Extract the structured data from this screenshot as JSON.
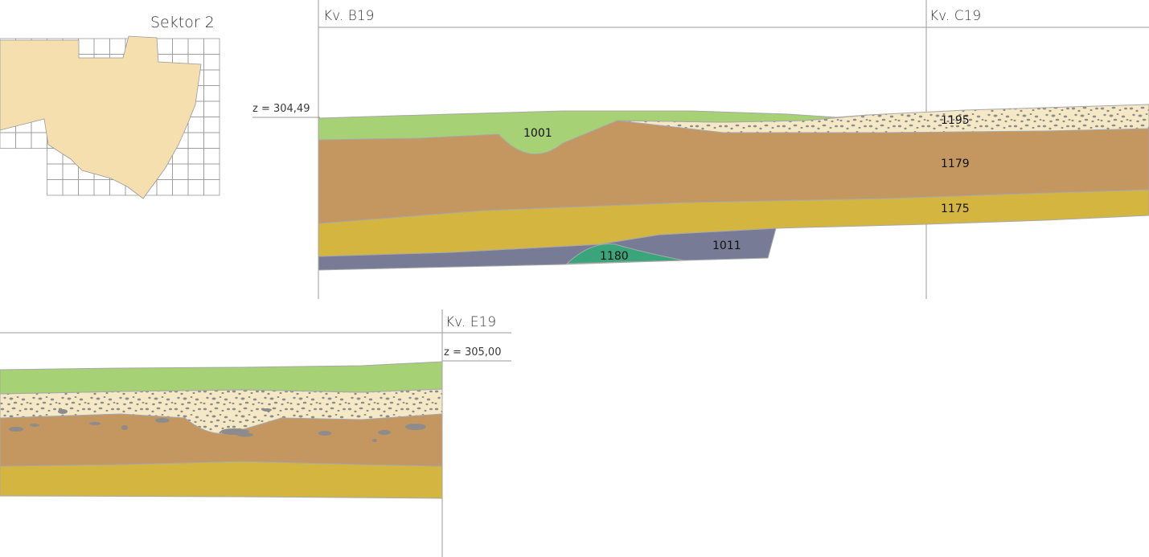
{
  "inset_map": {
    "title": "Sektor 2"
  },
  "upper_profile": {
    "grid_labels": [
      "Kv. B19",
      "Kv. C19"
    ],
    "elevation": "z = 304,49",
    "layers": [
      {
        "id": "1001",
        "color": "#a6d175"
      },
      {
        "id": "1195",
        "color": "#f4e8c5"
      },
      {
        "id": "1179",
        "color": "#c49660"
      },
      {
        "id": "1175",
        "color": "#d3b540"
      },
      {
        "id": "1011",
        "color": "#777b95"
      },
      {
        "id": "1180",
        "color": "#3aa57a"
      }
    ]
  },
  "lower_profile": {
    "grid_label": "Kv. E19",
    "elevation": "z = 305,00"
  },
  "colors": {
    "grid_line": "#9a9a9a",
    "layer_outline": "#a8a8a8",
    "map_fill": "#f5dfae",
    "pebble": "#8c8c8c"
  }
}
